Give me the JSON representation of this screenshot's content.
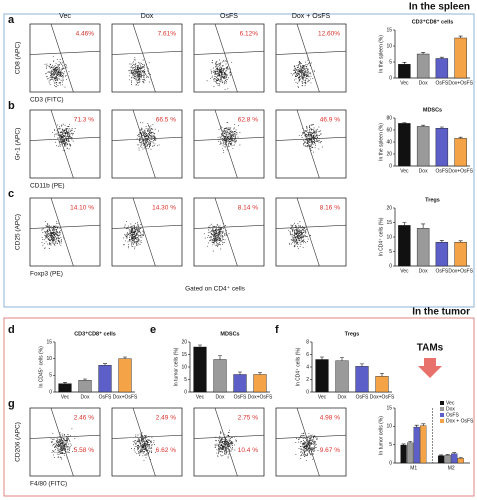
{
  "figure": {
    "spleen_header": "In the spleen",
    "tumor_header": "In the tumor",
    "tams_label": "TAMs",
    "gate_note": "Gated on CD4⁺ cells",
    "groups": [
      "Vec",
      "Dox",
      "OsFS",
      "Dox + OsFS"
    ],
    "flow_rows": [
      {
        "panel": "a",
        "y_label": "CD8 (APC)",
        "x_label": "CD3 (FITC)",
        "upper": [
          "4.46%",
          "7.61%",
          "6.12%",
          "12.60%"
        ]
      },
      {
        "panel": "b",
        "y_label": "Gr-1 (APC)",
        "x_label": "CD11b (PE)",
        "upper": [
          "71.3 %",
          "66.5 %",
          "62.8 %",
          "46.9 %"
        ]
      },
      {
        "panel": "c",
        "y_label": "CD25 (APC)",
        "x_label": "Foxp3 (PE)",
        "upper": [
          "14.10 %",
          "14.30 %",
          "8.14 %",
          "8.16 %"
        ]
      },
      {
        "panel": "g",
        "y_label": "CD206 (APC)",
        "x_label": "F4/80 (FITC)",
        "upper": [
          "2.46 %",
          "2.49 %",
          "2.75 %",
          "4.98 %"
        ],
        "lower": [
          "5.58 %",
          "6.62 %",
          "10.4 %",
          "9.67 %"
        ]
      }
    ]
  },
  "chart_data": [
    {
      "type": "bar",
      "title": "CD3⁺CD8⁺ cells",
      "y_label": "In the spleen (%)",
      "categories": [
        "Vec",
        "Dox",
        "OsFS",
        "Dox+OsFS"
      ],
      "values": [
        4.3,
        7.5,
        6.1,
        12.5
      ],
      "errors": [
        0.6,
        0.5,
        0.4,
        0.6
      ],
      "colors": [
        "#111111",
        "#9a9a9a",
        "#5b5fc7",
        "#f5a347"
      ],
      "ylim": [
        0,
        15
      ],
      "yticks": [
        0,
        5,
        10,
        15
      ]
    },
    {
      "type": "bar",
      "title": "MDSCs",
      "y_label": "In the spleen (%)",
      "categories": [
        "Vec",
        "Dox",
        "OsFS",
        "Dox+OsFS"
      ],
      "values": [
        71,
        66,
        63,
        46
      ],
      "errors": [
        1,
        2,
        2,
        2
      ],
      "colors": [
        "#111111",
        "#9a9a9a",
        "#5b5fc7",
        "#f5a347"
      ],
      "ylim": [
        0,
        80
      ],
      "yticks": [
        0,
        20,
        40,
        60,
        80
      ]
    },
    {
      "type": "bar",
      "title": "Tregs",
      "y_label": "In CD4⁺ cells (%)",
      "categories": [
        "Vec",
        "Dox",
        "OsFS",
        "Dox+OsFS"
      ],
      "values": [
        14,
        13,
        8.2,
        8.2
      ],
      "errors": [
        1,
        1.5,
        0.6,
        0.5
      ],
      "colors": [
        "#111111",
        "#9a9a9a",
        "#5b5fc7",
        "#f5a347"
      ],
      "ylim": [
        0,
        20
      ],
      "yticks": [
        0,
        5,
        10,
        15,
        20
      ]
    },
    {
      "type": "bar",
      "panel": "d",
      "title": "CD3⁺CD8⁺ cells",
      "y_label": "In CD45⁺ cells (%)",
      "categories": [
        "Vec",
        "Dox",
        "OsFS",
        "Dox+OsFS"
      ],
      "values": [
        2.5,
        3.5,
        8,
        10
      ],
      "errors": [
        0.4,
        0.4,
        0.5,
        0.5
      ],
      "colors": [
        "#111111",
        "#9a9a9a",
        "#5b5fc7",
        "#f5a347"
      ],
      "ylim": [
        0,
        15
      ],
      "yticks": [
        0,
        5,
        10,
        15
      ]
    },
    {
      "type": "bar",
      "panel": "e",
      "title": "MDSCs",
      "y_label": "In tumor cells (%)",
      "categories": [
        "Vec",
        "Dox",
        "OsFS",
        "Dox+OsFS"
      ],
      "values": [
        18,
        13,
        7,
        7
      ],
      "errors": [
        0.8,
        1.5,
        1,
        0.8
      ],
      "colors": [
        "#111111",
        "#9a9a9a",
        "#5b5fc7",
        "#f5a347"
      ],
      "ylim": [
        0,
        20
      ],
      "yticks": [
        0,
        5,
        10,
        15,
        20
      ]
    },
    {
      "type": "bar",
      "panel": "f",
      "title": "Tregs",
      "y_label": "In CD4⁺ cells (%)",
      "categories": [
        "Vec",
        "Dox",
        "OsFS",
        "Dox+OsFS"
      ],
      "values": [
        5.2,
        5.0,
        4.1,
        2.5
      ],
      "errors": [
        0.4,
        0.5,
        0.4,
        0.5
      ],
      "colors": [
        "#111111",
        "#9a9a9a",
        "#5b5fc7",
        "#f5a347"
      ],
      "ylim": [
        0,
        8
      ],
      "yticks": [
        0,
        2,
        4,
        6,
        8
      ]
    },
    {
      "type": "grouped",
      "y_label": "In tumor cells (%)",
      "categories": [
        "M1",
        "M2"
      ],
      "ylim": [
        0,
        15
      ],
      "yticks": [
        0,
        5,
        10,
        15
      ],
      "series": [
        {
          "name": "Vec",
          "color": "#111111",
          "values": [
            4.9,
            2.0
          ],
          "errors": [
            0.3,
            0.2
          ]
        },
        {
          "name": "Dox",
          "color": "#9a9a9a",
          "values": [
            5.5,
            2.1
          ],
          "errors": [
            0.4,
            0.2
          ]
        },
        {
          "name": "OsFS",
          "color": "#5b5fc7",
          "values": [
            9.8,
            2.5
          ],
          "errors": [
            0.5,
            0.3
          ]
        },
        {
          "name": "Dox + OsFS",
          "color": "#f5a347",
          "values": [
            10.2,
            1.3
          ],
          "errors": [
            0.5,
            0.2
          ]
        }
      ]
    }
  ]
}
